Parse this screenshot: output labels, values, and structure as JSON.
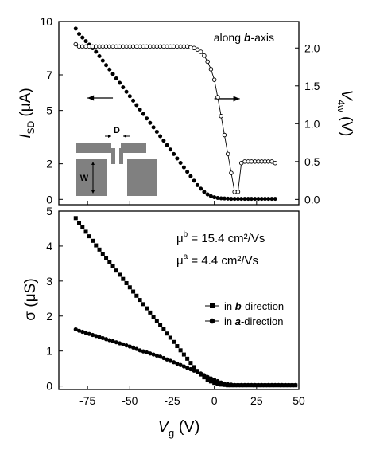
{
  "chart_data": [
    {
      "type": "scatter",
      "panel": "top",
      "annotation": "along b-axis",
      "annotation_parts": [
        "along ",
        "b",
        "-axis"
      ],
      "ylabel_left": {
        "main": "I",
        "sub": "SD",
        "unit": " (μA)"
      },
      "ylabel_right": {
        "main": "V",
        "sub": "4w",
        "unit": " (V)"
      },
      "xlim": [
        -92,
        50
      ],
      "ylim_left": [
        -0.3,
        10
      ],
      "ylim_right": [
        -0.07,
        2.35
      ],
      "yticks_left": [
        "0",
        "2",
        "5",
        "7",
        "10"
      ],
      "yticks_left_values": [
        0,
        2,
        5,
        7,
        10
      ],
      "yticks_right": [
        "0.0",
        "0.5",
        "1.0",
        "1.5",
        "2.0"
      ],
      "yticks_right_values": [
        0,
        0.5,
        1.0,
        1.5,
        2.0
      ],
      "arrows": [
        {
          "direction": "left",
          "axis": "left",
          "x_from": -60,
          "x_to": -75,
          "y": 5.7
        },
        {
          "direction": "right",
          "axis": "right",
          "x_from": 0,
          "x_to": 15,
          "y": 1.33
        }
      ],
      "inset": {
        "labels": [
          "D",
          "W"
        ]
      },
      "series": [
        {
          "marker": "filled-circle",
          "axis": "left",
          "x": [
            -82,
            -80,
            -78,
            -76,
            -74,
            -72,
            -70,
            -68,
            -66,
            -64,
            -62,
            -60,
            -58,
            -56,
            -54,
            -52,
            -50,
            -48,
            -46,
            -44,
            -42,
            -40,
            -38,
            -36,
            -34,
            -32,
            -30,
            -28,
            -26,
            -24,
            -22,
            -20,
            -18,
            -16,
            -14,
            -12,
            -10,
            -8,
            -6,
            -4,
            -2,
            0,
            2,
            4,
            6,
            8,
            10,
            12,
            14,
            16,
            18,
            20,
            22,
            24,
            26,
            28,
            30,
            32,
            34,
            36
          ],
          "y": [
            9.6,
            9.3,
            9.1,
            8.9,
            8.7,
            8.5,
            8.3,
            8.05,
            7.8,
            7.55,
            7.3,
            7.05,
            6.8,
            6.55,
            6.3,
            6.05,
            5.8,
            5.55,
            5.3,
            5.05,
            4.8,
            4.55,
            4.3,
            4.05,
            3.8,
            3.55,
            3.3,
            3.05,
            2.8,
            2.55,
            2.3,
            2.05,
            1.8,
            1.55,
            1.3,
            1.05,
            0.8,
            0.6,
            0.42,
            0.28,
            0.18,
            0.12,
            0.08,
            0.06,
            0.05,
            0.04,
            0.03,
            0.03,
            0.03,
            0.03,
            0.03,
            0.03,
            0.03,
            0.03,
            0.03,
            0.03,
            0.03,
            0.03,
            0.03,
            0.03
          ]
        },
        {
          "marker": "open-circle",
          "axis": "right",
          "connected": true,
          "x": [
            -82,
            -80,
            -78,
            -76,
            -74,
            -72,
            -70,
            -68,
            -66,
            -64,
            -62,
            -60,
            -58,
            -56,
            -54,
            -52,
            -50,
            -48,
            -46,
            -44,
            -42,
            -40,
            -38,
            -36,
            -34,
            -32,
            -30,
            -28,
            -26,
            -24,
            -22,
            -20,
            -18,
            -16,
            -14,
            -12,
            -10,
            -8,
            -6,
            -4,
            -2,
            0,
            2,
            4,
            6,
            8,
            10,
            12,
            14,
            16,
            18,
            20,
            22,
            24,
            26,
            28,
            30,
            32,
            34,
            36
          ],
          "y": [
            2.05,
            2.02,
            2.02,
            2.02,
            2.02,
            2.02,
            2.02,
            2.02,
            2.02,
            2.02,
            2.02,
            2.02,
            2.02,
            2.02,
            2.02,
            2.02,
            2.02,
            2.02,
            2.02,
            2.02,
            2.02,
            2.02,
            2.02,
            2.02,
            2.02,
            2.02,
            2.02,
            2.02,
            2.02,
            2.02,
            2.02,
            2.02,
            2.02,
            2.02,
            2.01,
            2.0,
            1.98,
            1.95,
            1.9,
            1.82,
            1.72,
            1.58,
            1.35,
            1.1,
            0.85,
            0.6,
            0.35,
            0.1,
            0.1,
            0.48,
            0.5,
            0.5,
            0.5,
            0.5,
            0.5,
            0.5,
            0.5,
            0.5,
            0.5,
            0.48
          ]
        }
      ]
    },
    {
      "type": "scatter",
      "panel": "bottom",
      "xlabel": {
        "main": "V",
        "sub": "g",
        "unit": " (V)"
      },
      "ylabel": {
        "main": "σ",
        "unit": " (μS)"
      },
      "xlim": [
        -92,
        50
      ],
      "ylim": [
        -0.1,
        5
      ],
      "xticks": [
        "-75",
        "-50",
        "-25",
        "0",
        "25",
        "50"
      ],
      "xticks_values": [
        -75,
        -50,
        -25,
        0,
        25,
        50
      ],
      "yticks": [
        "0",
        "1",
        "2",
        "3",
        "4",
        "5"
      ],
      "yticks_values": [
        0,
        1,
        2,
        3,
        4,
        5
      ],
      "annotations": [
        {
          "main": "μ",
          "sup": "b",
          "text": " = 15.4 cm²/Vs"
        },
        {
          "main": "μ",
          "sup": "a",
          "text": " = 4.4 cm²/Vs"
        }
      ],
      "series": [
        {
          "name": "in b-direction",
          "name_parts": [
            "in ",
            "b",
            "-direction"
          ],
          "marker": "filled-square",
          "x": [
            -82,
            -80,
            -78,
            -76,
            -74,
            -72,
            -70,
            -68,
            -66,
            -64,
            -62,
            -60,
            -58,
            -56,
            -54,
            -52,
            -50,
            -48,
            -46,
            -44,
            -42,
            -40,
            -38,
            -36,
            -34,
            -32,
            -30,
            -28,
            -26,
            -24,
            -22,
            -20,
            -18,
            -16,
            -14,
            -12,
            -10,
            -8,
            -6,
            -4,
            -2,
            0,
            2,
            4,
            6,
            8,
            10,
            12,
            14,
            16,
            18,
            20,
            22,
            24,
            26,
            28,
            30,
            32,
            34,
            36,
            38,
            40,
            42,
            44,
            46,
            48
          ],
          "y": [
            4.8,
            4.67,
            4.54,
            4.41,
            4.28,
            4.15,
            4.02,
            3.9,
            3.78,
            3.66,
            3.54,
            3.42,
            3.3,
            3.18,
            3.06,
            2.94,
            2.82,
            2.7,
            2.58,
            2.46,
            2.34,
            2.22,
            2.1,
            1.98,
            1.86,
            1.74,
            1.62,
            1.5,
            1.38,
            1.26,
            1.14,
            1.02,
            0.9,
            0.78,
            0.66,
            0.54,
            0.43,
            0.33,
            0.25,
            0.18,
            0.13,
            0.09,
            0.06,
            0.04,
            0.03,
            0.02,
            0.02,
            0.02,
            0.02,
            0.02,
            0.02,
            0.02,
            0.02,
            0.02,
            0.02,
            0.02,
            0.02,
            0.02,
            0.02,
            0.02,
            0.02,
            0.02,
            0.02,
            0.02,
            0.02,
            0.02
          ]
        },
        {
          "name": "in a-direction",
          "name_parts": [
            "in ",
            "a",
            "-direction"
          ],
          "marker": "filled-circle",
          "x": [
            -82,
            -80,
            -78,
            -76,
            -74,
            -72,
            -70,
            -68,
            -66,
            -64,
            -62,
            -60,
            -58,
            -56,
            -54,
            -52,
            -50,
            -48,
            -46,
            -44,
            -42,
            -40,
            -38,
            -36,
            -34,
            -32,
            -30,
            -28,
            -26,
            -24,
            -22,
            -20,
            -18,
            -16,
            -14,
            -12,
            -10,
            -8,
            -6,
            -4,
            -2,
            0,
            2,
            4,
            6,
            8,
            10,
            12,
            14,
            16,
            18,
            20,
            22,
            24,
            26,
            28,
            30,
            32,
            34,
            36,
            38,
            40,
            42,
            44,
            46,
            48
          ],
          "y": [
            1.62,
            1.58,
            1.55,
            1.52,
            1.49,
            1.46,
            1.43,
            1.4,
            1.37,
            1.34,
            1.31,
            1.28,
            1.25,
            1.22,
            1.19,
            1.16,
            1.13,
            1.1,
            1.06,
            1.02,
            0.99,
            0.96,
            0.93,
            0.9,
            0.87,
            0.84,
            0.8,
            0.76,
            0.72,
            0.68,
            0.64,
            0.6,
            0.56,
            0.52,
            0.48,
            0.44,
            0.4,
            0.36,
            0.31,
            0.26,
            0.22,
            0.18,
            0.14,
            0.1,
            0.07,
            0.05,
            0.04,
            0.03,
            0.03,
            0.03,
            0.03,
            0.03,
            0.03,
            0.03,
            0.03,
            0.03,
            0.03,
            0.03,
            0.03,
            0.03,
            0.03,
            0.03,
            0.03,
            0.03,
            0.03,
            0.03
          ]
        }
      ]
    }
  ]
}
